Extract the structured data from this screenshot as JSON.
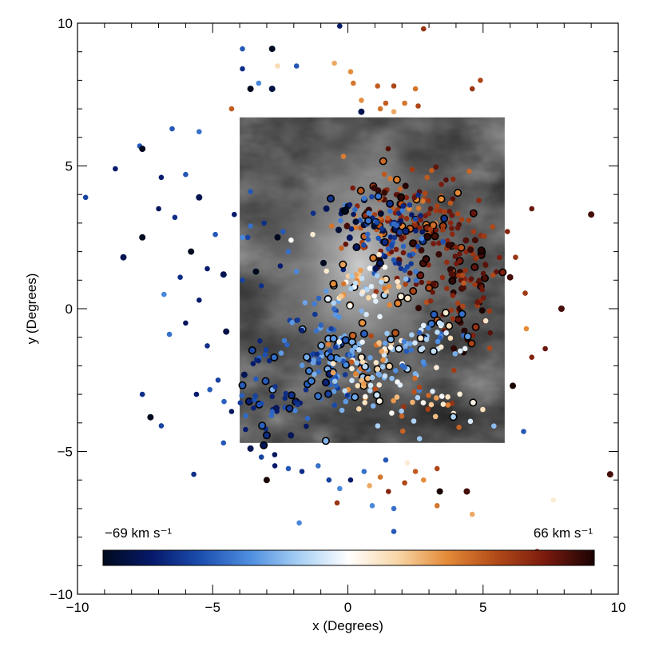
{
  "chart_data": {
    "type": "scatter",
    "xlabel": "x (Degrees)",
    "ylabel": "y (Degrees)",
    "xlim": [
      -10,
      10
    ],
    "ylim": [
      -10,
      10
    ],
    "x_ticks": [
      "-10",
      "-5",
      "0",
      "5",
      "10"
    ],
    "y_ticks": [
      "-10",
      "-5",
      "0",
      "5",
      "10"
    ],
    "background_image": {
      "description": "grayscale sky map",
      "extent_x": [
        -4,
        5.8
      ],
      "extent_y": [
        -4.7,
        6.7
      ]
    },
    "colorbar": {
      "min_label": "−69 km s⁻¹",
      "max_label": "66 km s⁻¹",
      "vmin": -69,
      "vmax": 66,
      "colors": [
        "#000a1e",
        "#06196a",
        "#1c4fb0",
        "#4f8fe0",
        "#a8d0f4",
        "#ffffff",
        "#f8d6a6",
        "#e48a38",
        "#b24a18",
        "#7a1a0e",
        "#1a0303"
      ]
    },
    "points": [
      {
        "x": -9.7,
        "y": 3.9,
        "v": -45
      },
      {
        "x": -8.6,
        "y": 4.9,
        "v": -55
      },
      {
        "x": -7.7,
        "y": 5.7,
        "v": -40
      },
      {
        "x": -7.6,
        "y": 5.6,
        "v": -69
      },
      {
        "x": -6.5,
        "y": 6.3,
        "v": -40
      },
      {
        "x": -5.5,
        "y": 6.2,
        "v": -35
      },
      {
        "x": -6.0,
        "y": 4.7,
        "v": -40
      },
      {
        "x": -6.9,
        "y": 4.6,
        "v": -55
      },
      {
        "x": -7.6,
        "y": 2.5,
        "v": -69
      },
      {
        "x": -8.3,
        "y": 1.8,
        "v": -60
      },
      {
        "x": -7.0,
        "y": 3.5,
        "v": -58
      },
      {
        "x": -6.4,
        "y": 3.2,
        "v": -50
      },
      {
        "x": -5.8,
        "y": 2.0,
        "v": -69
      },
      {
        "x": -5.2,
        "y": 1.4,
        "v": -55
      },
      {
        "x": -4.6,
        "y": 1.2,
        "v": -60
      },
      {
        "x": -3.9,
        "y": 1.0,
        "v": -45
      },
      {
        "x": -6.2,
        "y": 1.1,
        "v": -50
      },
      {
        "x": -6.8,
        "y": 0.5,
        "v": -30
      },
      {
        "x": -5.5,
        "y": 0.3,
        "v": -55
      },
      {
        "x": -6.0,
        "y": -0.5,
        "v": -58
      },
      {
        "x": -6.6,
        "y": -0.9,
        "v": -35
      },
      {
        "x": -5.2,
        "y": -1.3,
        "v": -50
      },
      {
        "x": -4.5,
        "y": -0.8,
        "v": -62
      },
      {
        "x": -4.8,
        "y": -2.5,
        "v": -45
      },
      {
        "x": -5.6,
        "y": -3.0,
        "v": -55
      },
      {
        "x": -7.6,
        "y": -3.0,
        "v": -50
      },
      {
        "x": -7.3,
        "y": -3.8,
        "v": -69
      },
      {
        "x": -6.9,
        "y": -4.1,
        "v": -45
      },
      {
        "x": -4.6,
        "y": -4.7,
        "v": -40
      },
      {
        "x": -5.7,
        "y": -5.8,
        "v": -50
      },
      {
        "x": -4.3,
        "y": -3.6,
        "v": -58
      },
      {
        "x": -4.2,
        "y": 3.3,
        "v": -55
      },
      {
        "x": -4.9,
        "y": 2.6,
        "v": -40
      },
      {
        "x": -5.5,
        "y": 3.9,
        "v": -60
      },
      {
        "x": -3.9,
        "y": 2.5,
        "v": -30
      },
      {
        "x": -3.6,
        "y": 2.9,
        "v": -35
      },
      {
        "x": -3.4,
        "y": 1.3,
        "v": -69
      },
      {
        "x": -3.2,
        "y": 0.8,
        "v": -50
      },
      {
        "x": -3.6,
        "y": 4.1,
        "v": -40
      },
      {
        "x": -2.8,
        "y": 9.1,
        "v": -69
      },
      {
        "x": -2.8,
        "y": 7.7,
        "v": -62
      },
      {
        "x": -3.9,
        "y": 9.1,
        "v": -40
      },
      {
        "x": -3.9,
        "y": 8.4,
        "v": -50
      },
      {
        "x": -3.6,
        "y": 7.7,
        "v": -69
      },
      {
        "x": -3.3,
        "y": 7.9,
        "v": -30
      },
      {
        "x": -2.6,
        "y": 8.5,
        "v": 10
      },
      {
        "x": -1.9,
        "y": 8.5,
        "v": -40
      },
      {
        "x": -0.3,
        "y": 9.9,
        "v": -55
      },
      {
        "x": 2.8,
        "y": 9.8,
        "v": 45
      },
      {
        "x": -0.5,
        "y": 8.6,
        "v": 20
      },
      {
        "x": 0.1,
        "y": 8.3,
        "v": 25
      },
      {
        "x": 0.2,
        "y": 7.9,
        "v": 30
      },
      {
        "x": 1.1,
        "y": 7.8,
        "v": 35
      },
      {
        "x": 1.7,
        "y": 7.8,
        "v": 40
      },
      {
        "x": 2.5,
        "y": 7.7,
        "v": 30
      },
      {
        "x": 0.5,
        "y": 7.3,
        "v": 25
      },
      {
        "x": 1.4,
        "y": 7.2,
        "v": 35
      },
      {
        "x": 2.1,
        "y": 7.2,
        "v": 30
      },
      {
        "x": 2.6,
        "y": 7.1,
        "v": 40
      },
      {
        "x": 0.5,
        "y": 6.9,
        "v": -60
      },
      {
        "x": 1.2,
        "y": 7.0,
        "v": 30
      },
      {
        "x": 4.9,
        "y": 8.0,
        "v": 40
      },
      {
        "x": 4.6,
        "y": 7.7,
        "v": 45
      },
      {
        "x": -4.3,
        "y": 7.0,
        "v": 35
      },
      {
        "x": 1.7,
        "y": 6.9,
        "v": 20
      },
      {
        "x": 6.8,
        "y": 3.5,
        "v": 55
      },
      {
        "x": 9.0,
        "y": 3.3,
        "v": 60
      },
      {
        "x": 5.9,
        "y": 2.7,
        "v": 50
      },
      {
        "x": 6.2,
        "y": 1.8,
        "v": 45
      },
      {
        "x": 6.0,
        "y": 1.1,
        "v": 60
      },
      {
        "x": 7.9,
        "y": 0.0,
        "v": 60
      },
      {
        "x": 6.6,
        "y": -0.7,
        "v": 25
      },
      {
        "x": 7.3,
        "y": -1.4,
        "v": 55
      },
      {
        "x": 6.8,
        "y": -1.7,
        "v": 50
      },
      {
        "x": 6.1,
        "y": -2.7,
        "v": 66
      },
      {
        "x": 6.5,
        "y": -4.3,
        "v": -40
      },
      {
        "x": 7.0,
        "y": -8.5,
        "v": 45
      },
      {
        "x": 9.7,
        "y": -5.8,
        "v": 60
      },
      {
        "x": 7.6,
        "y": -6.7,
        "v": 5
      },
      {
        "x": -3.6,
        "y": -4.9,
        "v": -60
      },
      {
        "x": -3.2,
        "y": -5.2,
        "v": -45
      },
      {
        "x": -3.0,
        "y": -6.0,
        "v": 66
      },
      {
        "x": -2.7,
        "y": -5.5,
        "v": -55
      },
      {
        "x": -2.2,
        "y": -5.6,
        "v": -40
      },
      {
        "x": -1.7,
        "y": -5.7,
        "v": -50
      },
      {
        "x": -1.1,
        "y": -5.5,
        "v": -35
      },
      {
        "x": -0.7,
        "y": -6.0,
        "v": -45
      },
      {
        "x": -0.3,
        "y": -6.3,
        "v": -30
      },
      {
        "x": 0.1,
        "y": -6.0,
        "v": -55
      },
      {
        "x": 0.6,
        "y": -5.7,
        "v": -35
      },
      {
        "x": 0.8,
        "y": -6.2,
        "v": 20
      },
      {
        "x": 1.2,
        "y": -5.9,
        "v": 30
      },
      {
        "x": 1.5,
        "y": -6.4,
        "v": 50
      },
      {
        "x": 2.1,
        "y": -6.1,
        "v": 40
      },
      {
        "x": 2.5,
        "y": -5.7,
        "v": 35
      },
      {
        "x": 2.8,
        "y": -6.0,
        "v": 25
      },
      {
        "x": 3.3,
        "y": -5.6,
        "v": 40
      },
      {
        "x": 3.4,
        "y": -6.4,
        "v": 66
      },
      {
        "x": 4.4,
        "y": -6.4,
        "v": 60
      },
      {
        "x": 4.6,
        "y": -7.2,
        "v": 20
      },
      {
        "x": 3.3,
        "y": -6.9,
        "v": 30
      },
      {
        "x": -0.4,
        "y": -6.8,
        "v": 45
      },
      {
        "x": 0.9,
        "y": -6.9,
        "v": -30
      },
      {
        "x": 1.7,
        "y": -7.0,
        "v": -35
      },
      {
        "x": 1.7,
        "y": -7.8,
        "v": -40
      },
      {
        "x": -1.8,
        "y": -7.5,
        "v": -30
      },
      {
        "x": 2.2,
        "y": -5.4,
        "v": 5
      },
      {
        "x": 1.4,
        "y": -5.3,
        "v": -40
      },
      {
        "x": -3.7,
        "y": 2.5,
        "v": -45
      },
      {
        "x": -3.1,
        "y": 3.0,
        "v": -50
      },
      {
        "x": -2.4,
        "y": 2.7,
        "v": -40
      },
      {
        "x": -2.2,
        "y": 2.0,
        "v": -35
      },
      {
        "x": -2.5,
        "y": 1.5,
        "v": -55
      },
      {
        "x": -1.9,
        "y": 1.3,
        "v": -30
      },
      {
        "x": -1.3,
        "y": 2.6,
        "v": 5
      },
      {
        "x": -0.9,
        "y": 1.6,
        "v": -69
      },
      {
        "x": -2.6,
        "y": 2.5,
        "v": -69
      },
      {
        "x": -2.1,
        "y": 2.4,
        "v": 0
      },
      {
        "x": -0.6,
        "y": 2.9,
        "v": 30
      }
    ],
    "clusters": [
      {
        "cx": 2.2,
        "cy": 3.0,
        "sx": 1.4,
        "sy": 1.3,
        "vmin": 25,
        "vmax": 66,
        "n": 170
      },
      {
        "cx": 4.2,
        "cy": 1.0,
        "sx": 0.9,
        "sy": 1.5,
        "vmin": 35,
        "vmax": 66,
        "n": 110
      },
      {
        "cx": 1.8,
        "cy": 2.6,
        "sx": 0.9,
        "sy": 0.9,
        "vmin": -60,
        "vmax": -30,
        "n": 60
      },
      {
        "cx": 0.2,
        "cy": 3.3,
        "sx": 0.8,
        "sy": 0.6,
        "vmin": -69,
        "vmax": -30,
        "n": 35
      },
      {
        "cx": -0.8,
        "cy": -1.6,
        "sx": 1.0,
        "sy": 1.3,
        "vmin": -55,
        "vmax": -20,
        "n": 110
      },
      {
        "cx": 0.7,
        "cy": -2.2,
        "sx": 0.8,
        "sy": 0.9,
        "vmin": -30,
        "vmax": 40,
        "n": 80
      },
      {
        "cx": 0.5,
        "cy": 0.8,
        "sx": 1.0,
        "sy": 0.6,
        "vmin": -20,
        "vmax": 30,
        "n": 55
      },
      {
        "cx": 3.0,
        "cy": -1.1,
        "sx": 1.0,
        "sy": 0.7,
        "vmin": -40,
        "vmax": 10,
        "n": 60
      },
      {
        "cx": -3.0,
        "cy": -3.0,
        "sx": 0.7,
        "sy": 1.3,
        "vmin": -60,
        "vmax": -35,
        "n": 45
      },
      {
        "cx": 2.9,
        "cy": -3.5,
        "sx": 1.3,
        "sy": 0.6,
        "vmin": -20,
        "vmax": 50,
        "n": 35
      }
    ]
  }
}
